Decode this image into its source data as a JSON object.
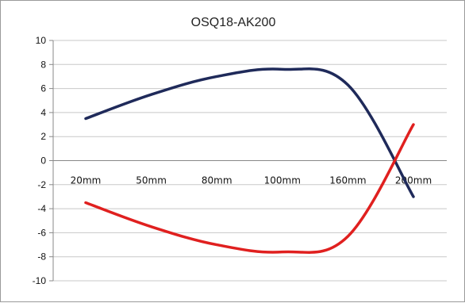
{
  "chart_data": {
    "type": "line",
    "title": "OSQ18-AK200",
    "xlabel": "",
    "ylabel": "",
    "categories": [
      "20mm",
      "50mm",
      "80mm",
      "100mm",
      "160mm",
      "200mm"
    ],
    "ylim": [
      -10,
      10
    ],
    "yticks": [
      10,
      8,
      6,
      4,
      2,
      0,
      -2,
      -4,
      -6,
      -8,
      -10
    ],
    "grid": "horizontal",
    "legend": "none",
    "series": [
      {
        "color": "#1f2a5a",
        "values": [
          3.5,
          5.5,
          7.0,
          7.6,
          6.3,
          -3.0
        ]
      },
      {
        "color": "#e0201f",
        "values": [
          -3.5,
          -5.5,
          -7.0,
          -7.6,
          -6.3,
          3.0
        ]
      }
    ]
  }
}
